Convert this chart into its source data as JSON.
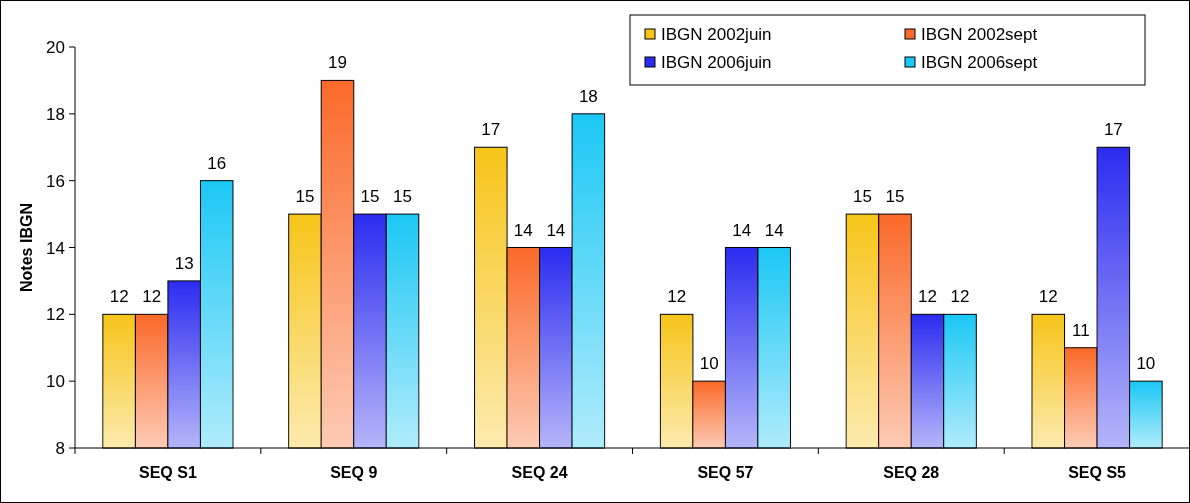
{
  "chart_data": {
    "type": "bar",
    "ylabel": "Notes IBGN",
    "categories": [
      "SEQ S1",
      "SEQ 9",
      "SEQ 24",
      "SEQ 57",
      "SEQ 28",
      "SEQ S5"
    ],
    "series": [
      {
        "name": "IBGN 2002juin",
        "color": "#f7c519",
        "values": [
          12,
          15,
          17,
          12,
          15,
          12
        ]
      },
      {
        "name": "IBGN 2002sept",
        "color": "#fb6a2a",
        "values": [
          12,
          19,
          14,
          10,
          15,
          11
        ]
      },
      {
        "name": "IBGN 2006juin",
        "color": "#2c2cf0",
        "values": [
          13,
          15,
          14,
          14,
          12,
          17
        ]
      },
      {
        "name": "IBGN 2006sept",
        "color": "#1cc8f5",
        "values": [
          16,
          15,
          18,
          14,
          12,
          10
        ]
      }
    ],
    "ylim": [
      8,
      20
    ],
    "yticks": [
      8,
      10,
      12,
      14,
      16,
      18,
      20
    ],
    "data_labels": true,
    "grid": false,
    "legend": "top right"
  }
}
